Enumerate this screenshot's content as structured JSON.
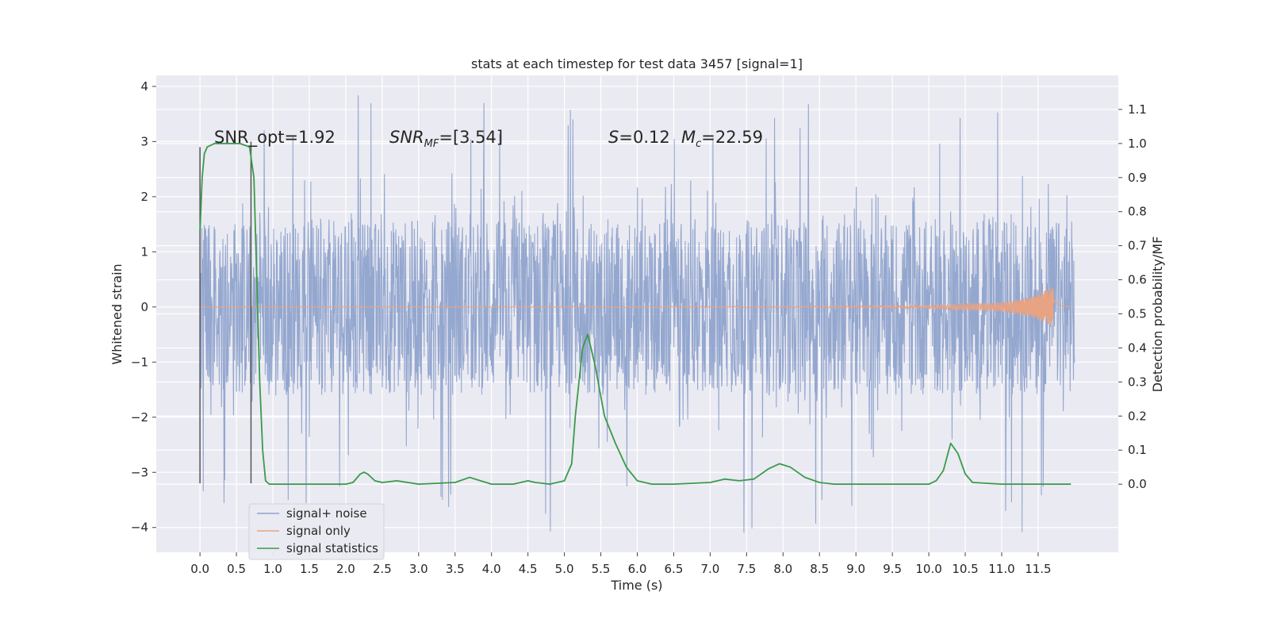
{
  "chart_data": {
    "type": "line",
    "title": "stats at each timestep for test data 3457 [signal=1]",
    "xlabel": "Time (s)",
    "ylabel_left": "Whitened strain",
    "ylabel_right": "Detection probability/MF",
    "xlim": [
      -0.6,
      12.6
    ],
    "ylim_left": [
      -4.45,
      4.2
    ],
    "ylim_right": [
      -0.2,
      1.2
    ],
    "x_ticks": [
      0.0,
      0.5,
      1.0,
      1.5,
      2.0,
      2.5,
      3.0,
      3.5,
      4.0,
      4.5,
      5.0,
      5.5,
      6.0,
      6.5,
      7.0,
      7.5,
      8.0,
      8.5,
      9.0,
      9.5,
      10.0,
      10.5,
      11.0,
      11.5
    ],
    "x_tick_labels": [
      "0.0",
      "0.5",
      "1.0",
      "1.5",
      "2.0",
      "2.5",
      "3.0",
      "3.5",
      "4.0",
      "4.5",
      "5.0",
      "5.5",
      "6.0",
      "6.5",
      "7.0",
      "7.5",
      "8.0",
      "8.5",
      "9.0",
      "9.5",
      "10.0",
      "10.5",
      "11.0",
      "11.5"
    ],
    "y_left_ticks": [
      -4,
      -3,
      -2,
      -1,
      0,
      1,
      2,
      3,
      4
    ],
    "y_left_tick_labels": [
      "−4",
      "−3",
      "−2",
      "−1",
      "0",
      "1",
      "2",
      "3",
      "4"
    ],
    "y_right_ticks": [
      0.0,
      0.1,
      0.2,
      0.3,
      0.4,
      0.5,
      0.6,
      0.7,
      0.8,
      0.9,
      1.0,
      1.1
    ],
    "y_right_tick_labels": [
      "0.0",
      "0.1",
      "0.2",
      "0.3",
      "0.4",
      "0.5",
      "0.6",
      "0.7",
      "0.8",
      "0.9",
      "1.0",
      "1.1"
    ],
    "grid": true,
    "legend_position": "lower-left",
    "series": [
      {
        "name": "signal+ noise",
        "axis": "left",
        "color": "#8fa3cc",
        "kind": "noise",
        "duration_s": 12.0,
        "typical_amplitude": 1.6,
        "peak_range": [
          -4.1,
          3.85
        ]
      },
      {
        "name": "signal only",
        "axis": "left",
        "color": "#e8a383",
        "kind": "chirp",
        "x": [
          0.0,
          8.0,
          10.0,
          11.0,
          11.4,
          11.6,
          11.68,
          11.72,
          11.8,
          12.0
        ],
        "amplitude": [
          0.0,
          0.01,
          0.03,
          0.08,
          0.18,
          0.3,
          0.37,
          0.3,
          0.05,
          0.0
        ]
      },
      {
        "name": "signal statistics",
        "axis": "right",
        "color": "#3a9a4a",
        "x": [
          0.0,
          0.03,
          0.06,
          0.1,
          0.2,
          0.4,
          0.55,
          0.68,
          0.74,
          0.78,
          0.82,
          0.86,
          0.9,
          0.95,
          1.0,
          1.2,
          1.5,
          2.0,
          2.1,
          2.2,
          2.25,
          2.3,
          2.4,
          2.5,
          2.7,
          3.0,
          3.5,
          3.7,
          3.85,
          4.0,
          4.3,
          4.5,
          4.6,
          4.8,
          5.0,
          5.1,
          5.15,
          5.25,
          5.32,
          5.42,
          5.55,
          5.7,
          5.85,
          6.0,
          6.2,
          6.5,
          7.0,
          7.2,
          7.4,
          7.6,
          7.8,
          7.95,
          8.1,
          8.3,
          8.5,
          8.7,
          9.0,
          9.5,
          10.0,
          10.1,
          10.2,
          10.3,
          10.4,
          10.5,
          10.6,
          11.0,
          11.5,
          11.95
        ],
        "y": [
          0.74,
          0.9,
          0.97,
          0.99,
          1.0,
          1.0,
          1.0,
          0.99,
          0.9,
          0.6,
          0.3,
          0.1,
          0.01,
          0.0,
          0.0,
          0.0,
          0.0,
          0.0,
          0.005,
          0.03,
          0.035,
          0.03,
          0.01,
          0.005,
          0.01,
          0.0,
          0.005,
          0.02,
          0.01,
          0.0,
          0.0,
          0.01,
          0.005,
          0.0,
          0.01,
          0.06,
          0.2,
          0.4,
          0.44,
          0.35,
          0.2,
          0.12,
          0.05,
          0.01,
          0.0,
          0.0,
          0.005,
          0.015,
          0.01,
          0.015,
          0.045,
          0.06,
          0.05,
          0.02,
          0.005,
          0.0,
          0.0,
          0.0,
          0.0,
          0.01,
          0.04,
          0.12,
          0.09,
          0.03,
          0.005,
          0.0,
          0.0,
          0.0
        ]
      }
    ],
    "vertical_lines": [
      {
        "x": 0.0,
        "y_range": [
          -3.2,
          2.9
        ],
        "color": "#555555"
      },
      {
        "x": 0.7,
        "y_range": [
          -3.2,
          3.0
        ],
        "color": "#555555"
      }
    ],
    "annotations": [
      {
        "id": "snr-opt",
        "text": "SNR_opt=1.92",
        "x": 0.2,
        "y": 3.1
      },
      {
        "id": "snr-mf",
        "text": "[3.54]",
        "x": 2.6,
        "y": 3.1
      },
      {
        "id": "s-value",
        "text": "0.12",
        "x": 5.6,
        "y": 3.1
      },
      {
        "id": "mc-value",
        "text": "22.59",
        "x": 6.6,
        "y": 3.1
      }
    ]
  }
}
